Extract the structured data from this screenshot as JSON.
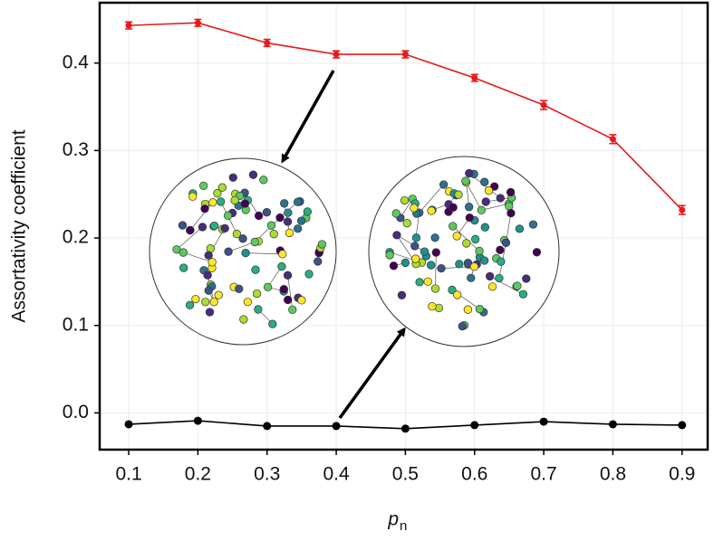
{
  "chart_data": {
    "type": "line",
    "ylabel": "Assortativity coefficient",
    "xlabel": "p",
    "xlabel_subscript": "n",
    "x": [
      0.1,
      0.2,
      0.3,
      0.4,
      0.5,
      0.6,
      0.7,
      0.8,
      0.9
    ],
    "series": [
      {
        "color": "#e8191c",
        "values": [
          0.443,
          0.446,
          0.423,
          0.41,
          0.41,
          0.383,
          0.352,
          0.313,
          0.232
        ],
        "errors": [
          0.004,
          0.004,
          0.004,
          0.004,
          0.004,
          0.004,
          0.005,
          0.005,
          0.005
        ]
      },
      {
        "color": "#000000",
        "values": [
          -0.013,
          -0.009,
          -0.015,
          -0.015,
          -0.018,
          -0.014,
          -0.01,
          -0.013,
          -0.014
        ]
      }
    ],
    "xlim": [
      0.058,
      0.937
    ],
    "ylim": [
      -0.042,
      0.469
    ],
    "xticks": [
      0.1,
      0.2,
      0.3,
      0.4,
      0.5,
      0.6,
      0.7,
      0.8,
      0.9
    ],
    "yticks": [
      {
        "value": 0,
        "label": "0.0"
      },
      0.1,
      0.2,
      0.3,
      0.4
    ],
    "grid": true
  }
}
